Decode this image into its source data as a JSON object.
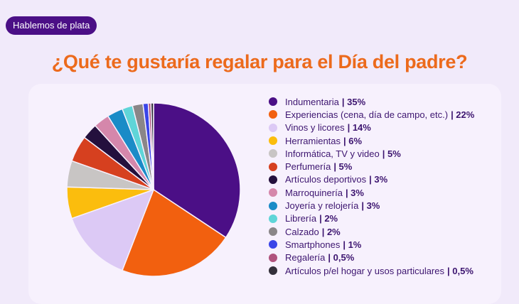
{
  "badge": "Hablemos de plata",
  "chart_data": {
    "type": "pie",
    "title": "¿Qué te gustaría regalar para el Día del padre?",
    "legend_position": "right",
    "slices": [
      {
        "label": "Indumentaria",
        "value": 35,
        "value_label": "| 35%",
        "color": "#4b0f86"
      },
      {
        "label": "Experiencias (cena, día de campo, etc.)",
        "value": 22,
        "value_label": "| 22%",
        "color": "#f2600f"
      },
      {
        "label": "Vinos y licores",
        "value": 14,
        "value_label": "| 14%",
        "color": "#dcc9f5"
      },
      {
        "label": "Herramientas",
        "value": 6,
        "value_label": "| 6%",
        "color": "#fbbd0d"
      },
      {
        "label": "Informática, TV y video",
        "value": 5,
        "value_label": "| 5%",
        "color": "#c8c5c4"
      },
      {
        "label": "Perfumería",
        "value": 5,
        "value_label": "| 5%",
        "color": "#d6401f"
      },
      {
        "label": "Artículos deportivos",
        "value": 3,
        "value_label": "| 3%",
        "color": "#24103d"
      },
      {
        "label": "Marroquinería",
        "value": 3,
        "value_label": "| 3%",
        "color": "#d587ab"
      },
      {
        "label": "Joyería y relojería",
        "value": 3,
        "value_label": "| 3%",
        "color": "#1a8bc7"
      },
      {
        "label": "Librería",
        "value": 2,
        "value_label": "| 2%",
        "color": "#5fd5d8"
      },
      {
        "label": "Calzado",
        "value": 2,
        "value_label": "| 2%",
        "color": "#8a8688"
      },
      {
        "label": "Smartphones",
        "value": 1,
        "value_label": "| 1%",
        "color": "#3a45e8"
      },
      {
        "label": "Regalería",
        "value": 0.5,
        "value_label": "| 0,5%",
        "color": "#b0537d"
      },
      {
        "label": "Artículos p/el hogar y usos particulares",
        "value": 0.5,
        "value_label": "| 0,5%",
        "color": "#33303a"
      }
    ]
  }
}
